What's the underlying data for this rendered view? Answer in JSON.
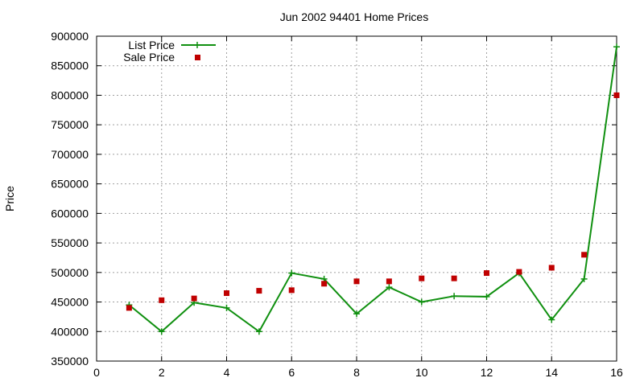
{
  "chart_data": {
    "type": "line",
    "title": "Jun 2002 94401 Home Prices",
    "xlabel": "",
    "ylabel": "Price",
    "xlim": [
      0,
      16
    ],
    "ylim": [
      350000,
      900000
    ],
    "x_ticks": [
      0,
      2,
      4,
      6,
      8,
      10,
      12,
      14,
      16
    ],
    "y_ticks": [
      350000,
      400000,
      450000,
      500000,
      550000,
      600000,
      650000,
      700000,
      750000,
      800000,
      850000,
      900000
    ],
    "grid": true,
    "legend_position": "top-left",
    "series": [
      {
        "name": "List Price",
        "style": "line-with-plus-markers",
        "color": "#109010",
        "x": [
          1,
          2,
          3,
          4,
          5,
          6,
          7,
          8,
          9,
          10,
          11,
          12,
          13,
          14,
          15,
          16
        ],
        "values": [
          445000,
          400000,
          449000,
          440000,
          400000,
          499000,
          489000,
          430000,
          475000,
          450000,
          460000,
          459000,
          499000,
          420000,
          489000,
          882000
        ]
      },
      {
        "name": "Sale Price",
        "style": "square-markers",
        "color": "#c00000",
        "x": [
          1,
          2,
          3,
          4,
          5,
          6,
          7,
          8,
          9,
          10,
          11,
          12,
          13,
          14,
          15,
          16
        ],
        "values": [
          440000,
          453000,
          456000,
          465000,
          469000,
          470000,
          481000,
          485000,
          485000,
          490000,
          490000,
          499000,
          501000,
          508000,
          530000,
          800000
        ]
      }
    ]
  }
}
